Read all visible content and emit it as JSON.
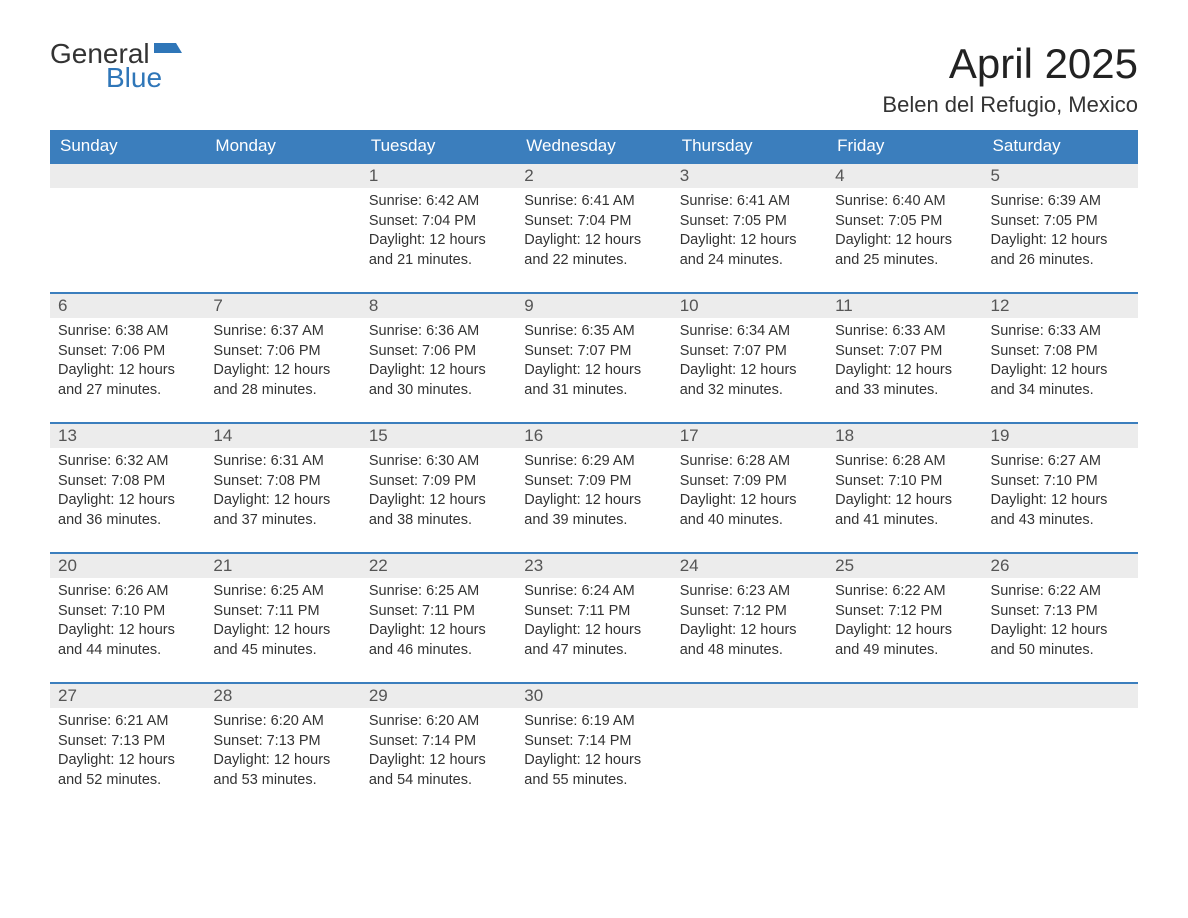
{
  "logo": {
    "line1": "General",
    "line2": "Blue"
  },
  "title": "April 2025",
  "subtitle": "Belen del Refugio, Mexico",
  "colors": {
    "header_bg": "#3b7ebd",
    "header_text": "#ffffff",
    "daynum_bg": "#ececec",
    "daynum_text": "#555555",
    "body_text": "#333333",
    "logo_blue": "#2f76b8",
    "border": "#3b7ebd",
    "page_bg": "#ffffff"
  },
  "weekdays": [
    "Sunday",
    "Monday",
    "Tuesday",
    "Wednesday",
    "Thursday",
    "Friday",
    "Saturday"
  ],
  "weeks": [
    [
      {
        "day": "",
        "sunrise": "",
        "sunset": "",
        "daylight": ""
      },
      {
        "day": "",
        "sunrise": "",
        "sunset": "",
        "daylight": ""
      },
      {
        "day": "1",
        "sunrise": "Sunrise: 6:42 AM",
        "sunset": "Sunset: 7:04 PM",
        "daylight": "Daylight: 12 hours and 21 minutes."
      },
      {
        "day": "2",
        "sunrise": "Sunrise: 6:41 AM",
        "sunset": "Sunset: 7:04 PM",
        "daylight": "Daylight: 12 hours and 22 minutes."
      },
      {
        "day": "3",
        "sunrise": "Sunrise: 6:41 AM",
        "sunset": "Sunset: 7:05 PM",
        "daylight": "Daylight: 12 hours and 24 minutes."
      },
      {
        "day": "4",
        "sunrise": "Sunrise: 6:40 AM",
        "sunset": "Sunset: 7:05 PM",
        "daylight": "Daylight: 12 hours and 25 minutes."
      },
      {
        "day": "5",
        "sunrise": "Sunrise: 6:39 AM",
        "sunset": "Sunset: 7:05 PM",
        "daylight": "Daylight: 12 hours and 26 minutes."
      }
    ],
    [
      {
        "day": "6",
        "sunrise": "Sunrise: 6:38 AM",
        "sunset": "Sunset: 7:06 PM",
        "daylight": "Daylight: 12 hours and 27 minutes."
      },
      {
        "day": "7",
        "sunrise": "Sunrise: 6:37 AM",
        "sunset": "Sunset: 7:06 PM",
        "daylight": "Daylight: 12 hours and 28 minutes."
      },
      {
        "day": "8",
        "sunrise": "Sunrise: 6:36 AM",
        "sunset": "Sunset: 7:06 PM",
        "daylight": "Daylight: 12 hours and 30 minutes."
      },
      {
        "day": "9",
        "sunrise": "Sunrise: 6:35 AM",
        "sunset": "Sunset: 7:07 PM",
        "daylight": "Daylight: 12 hours and 31 minutes."
      },
      {
        "day": "10",
        "sunrise": "Sunrise: 6:34 AM",
        "sunset": "Sunset: 7:07 PM",
        "daylight": "Daylight: 12 hours and 32 minutes."
      },
      {
        "day": "11",
        "sunrise": "Sunrise: 6:33 AM",
        "sunset": "Sunset: 7:07 PM",
        "daylight": "Daylight: 12 hours and 33 minutes."
      },
      {
        "day": "12",
        "sunrise": "Sunrise: 6:33 AM",
        "sunset": "Sunset: 7:08 PM",
        "daylight": "Daylight: 12 hours and 34 minutes."
      }
    ],
    [
      {
        "day": "13",
        "sunrise": "Sunrise: 6:32 AM",
        "sunset": "Sunset: 7:08 PM",
        "daylight": "Daylight: 12 hours and 36 minutes."
      },
      {
        "day": "14",
        "sunrise": "Sunrise: 6:31 AM",
        "sunset": "Sunset: 7:08 PM",
        "daylight": "Daylight: 12 hours and 37 minutes."
      },
      {
        "day": "15",
        "sunrise": "Sunrise: 6:30 AM",
        "sunset": "Sunset: 7:09 PM",
        "daylight": "Daylight: 12 hours and 38 minutes."
      },
      {
        "day": "16",
        "sunrise": "Sunrise: 6:29 AM",
        "sunset": "Sunset: 7:09 PM",
        "daylight": "Daylight: 12 hours and 39 minutes."
      },
      {
        "day": "17",
        "sunrise": "Sunrise: 6:28 AM",
        "sunset": "Sunset: 7:09 PM",
        "daylight": "Daylight: 12 hours and 40 minutes."
      },
      {
        "day": "18",
        "sunrise": "Sunrise: 6:28 AM",
        "sunset": "Sunset: 7:10 PM",
        "daylight": "Daylight: 12 hours and 41 minutes."
      },
      {
        "day": "19",
        "sunrise": "Sunrise: 6:27 AM",
        "sunset": "Sunset: 7:10 PM",
        "daylight": "Daylight: 12 hours and 43 minutes."
      }
    ],
    [
      {
        "day": "20",
        "sunrise": "Sunrise: 6:26 AM",
        "sunset": "Sunset: 7:10 PM",
        "daylight": "Daylight: 12 hours and 44 minutes."
      },
      {
        "day": "21",
        "sunrise": "Sunrise: 6:25 AM",
        "sunset": "Sunset: 7:11 PM",
        "daylight": "Daylight: 12 hours and 45 minutes."
      },
      {
        "day": "22",
        "sunrise": "Sunrise: 6:25 AM",
        "sunset": "Sunset: 7:11 PM",
        "daylight": "Daylight: 12 hours and 46 minutes."
      },
      {
        "day": "23",
        "sunrise": "Sunrise: 6:24 AM",
        "sunset": "Sunset: 7:11 PM",
        "daylight": "Daylight: 12 hours and 47 minutes."
      },
      {
        "day": "24",
        "sunrise": "Sunrise: 6:23 AM",
        "sunset": "Sunset: 7:12 PM",
        "daylight": "Daylight: 12 hours and 48 minutes."
      },
      {
        "day": "25",
        "sunrise": "Sunrise: 6:22 AM",
        "sunset": "Sunset: 7:12 PM",
        "daylight": "Daylight: 12 hours and 49 minutes."
      },
      {
        "day": "26",
        "sunrise": "Sunrise: 6:22 AM",
        "sunset": "Sunset: 7:13 PM",
        "daylight": "Daylight: 12 hours and 50 minutes."
      }
    ],
    [
      {
        "day": "27",
        "sunrise": "Sunrise: 6:21 AM",
        "sunset": "Sunset: 7:13 PM",
        "daylight": "Daylight: 12 hours and 52 minutes."
      },
      {
        "day": "28",
        "sunrise": "Sunrise: 6:20 AM",
        "sunset": "Sunset: 7:13 PM",
        "daylight": "Daylight: 12 hours and 53 minutes."
      },
      {
        "day": "29",
        "sunrise": "Sunrise: 6:20 AM",
        "sunset": "Sunset: 7:14 PM",
        "daylight": "Daylight: 12 hours and 54 minutes."
      },
      {
        "day": "30",
        "sunrise": "Sunrise: 6:19 AM",
        "sunset": "Sunset: 7:14 PM",
        "daylight": "Daylight: 12 hours and 55 minutes."
      },
      {
        "day": "",
        "sunrise": "",
        "sunset": "",
        "daylight": ""
      },
      {
        "day": "",
        "sunrise": "",
        "sunset": "",
        "daylight": ""
      },
      {
        "day": "",
        "sunrise": "",
        "sunset": "",
        "daylight": ""
      }
    ]
  ]
}
